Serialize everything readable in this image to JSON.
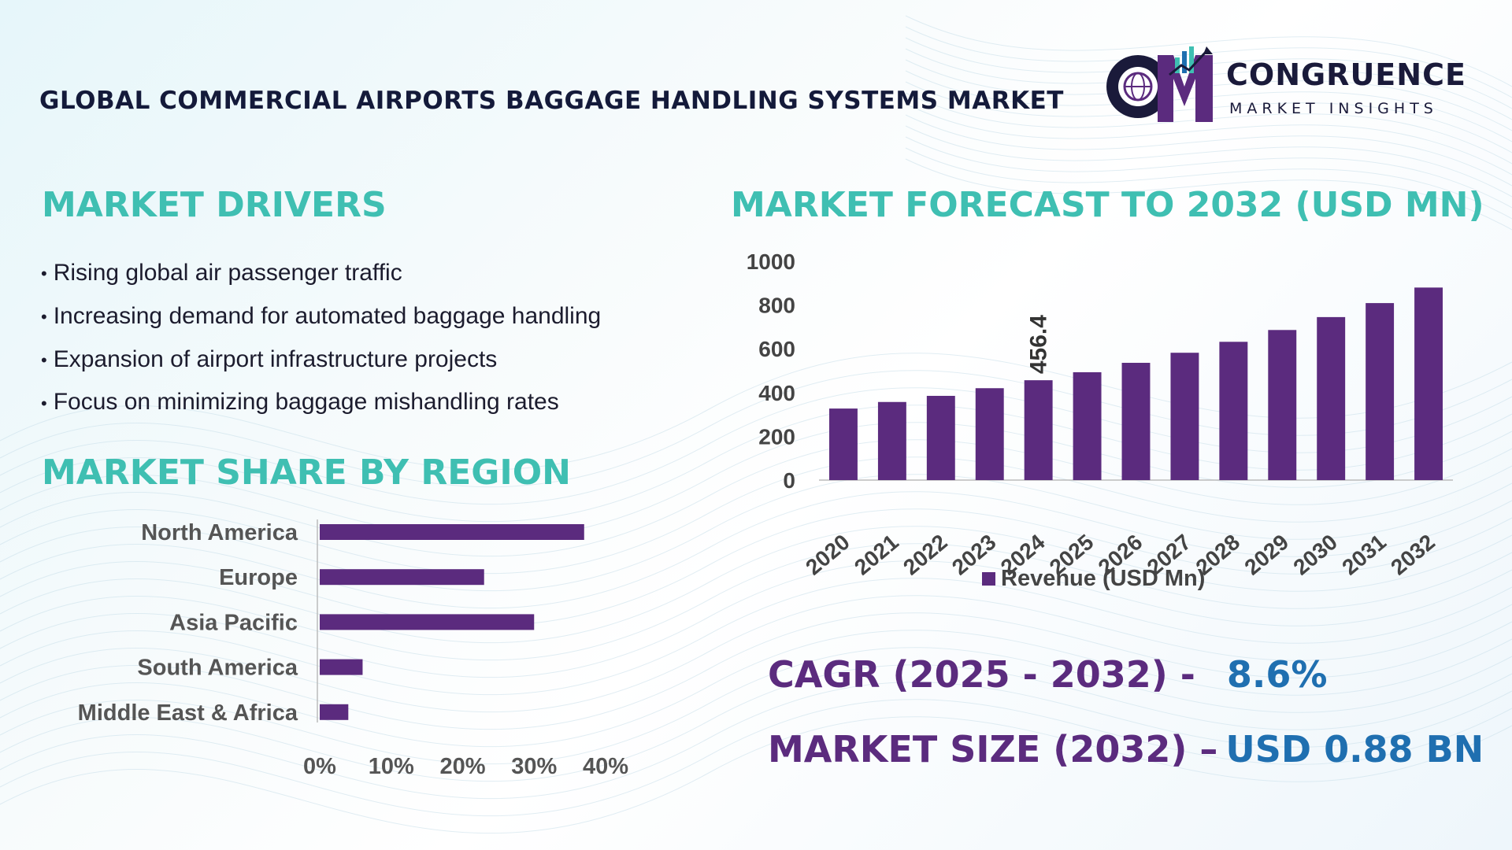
{
  "header": {
    "title": "GLOBAL COMMERCIAL AIRPORTS BAGGAGE HANDLING SYSTEMS MARKET"
  },
  "logo": {
    "name": "CONGRUENCE",
    "tagline": "MARKET INSIGHTS",
    "colors": {
      "purple": "#5b2b7e",
      "navy": "#1a1a3a",
      "accent": "#3fbfb2"
    }
  },
  "drivers": {
    "heading": "MARKET DRIVERS",
    "items": [
      "Rising global air passenger traffic",
      "Increasing demand for automated baggage handling",
      "Expansion of airport infrastructure projects",
      "Focus on minimizing baggage mishandling rates"
    ]
  },
  "region": {
    "heading": "MARKET SHARE BY REGION"
  },
  "forecast": {
    "heading": "MARKET FORECAST TO 2032 (USD MN)"
  },
  "kpis": {
    "cagr_label": "CAGR (2025 - 2032) -",
    "cagr_value": "8.6%",
    "size_label": "MARKET SIZE (2032) –",
    "size_value": "USD 0.88 BN"
  },
  "colors": {
    "bar": "#5b2b7e",
    "heading": "#3fbfb2",
    "kpi_label": "#5b2b7e",
    "kpi_value": "#1f6fb0"
  },
  "chart_data": [
    {
      "type": "bar",
      "categories": [
        "2020",
        "2021",
        "2022",
        "2023",
        "2024",
        "2025",
        "2026",
        "2027",
        "2028",
        "2029",
        "2030",
        "2031",
        "2032"
      ],
      "series": [
        {
          "name": "Revenue (USD Mn)",
          "values": [
            327,
            357,
            385,
            420,
            456.4,
            493,
            536,
            582,
            632,
            686,
            745,
            809,
            880
          ]
        }
      ],
      "data_labels": [
        {
          "category": "2024",
          "text": "456.4"
        }
      ],
      "yticks": [
        "0",
        "200",
        "400",
        "600",
        "800",
        "1000"
      ],
      "ylim": [
        0,
        1000
      ],
      "legend": "bottom",
      "grid": false
    },
    {
      "type": "bar",
      "orientation": "horizontal",
      "categories": [
        "North America",
        "Europe",
        "Asia Pacific",
        "South America",
        "Middle East & Africa"
      ],
      "values": [
        37,
        23,
        30,
        6,
        4
      ],
      "xticks": [
        "0%",
        "10%",
        "20%",
        "30%",
        "40%"
      ],
      "xlim": [
        0,
        40
      ],
      "grid": false
    }
  ]
}
